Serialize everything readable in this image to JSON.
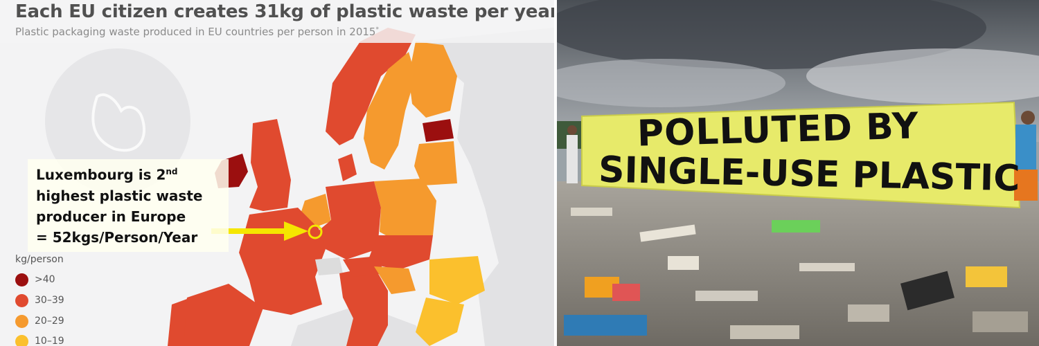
{
  "infographic": {
    "title": "Each EU citizen creates 31kg of plastic waste per year",
    "subtitle": "Plastic packaging waste produced in EU countries per person in 2015",
    "subtitle_footnote_mark": "*",
    "annotation": {
      "line1_main": "Luxembourg is 2",
      "line1_sup": "nd",
      "line2": "highest plastic waste",
      "line3": "producer in Europe",
      "line4": "= 52kgs/Person/Year",
      "highlight_color": "#f5e600"
    },
    "legend": {
      "title": "kg/person",
      "items": [
        {
          "label": ">40",
          "color": "#9b0f0f"
        },
        {
          "label": "30–39",
          "color": "#e04a2f"
        },
        {
          "label": "20–29",
          "color": "#f59a2e"
        },
        {
          "label": "10–19",
          "color": "#fbc02d"
        }
      ]
    },
    "colors": {
      "background": "#f3f3f4",
      "no_data": "#dcdcdc"
    }
  },
  "photo": {
    "banner_line1": "POLLUTED BY",
    "banner_line2": "SINGLE-USE PLASTIC",
    "banner_color": "#e7ea6a"
  }
}
